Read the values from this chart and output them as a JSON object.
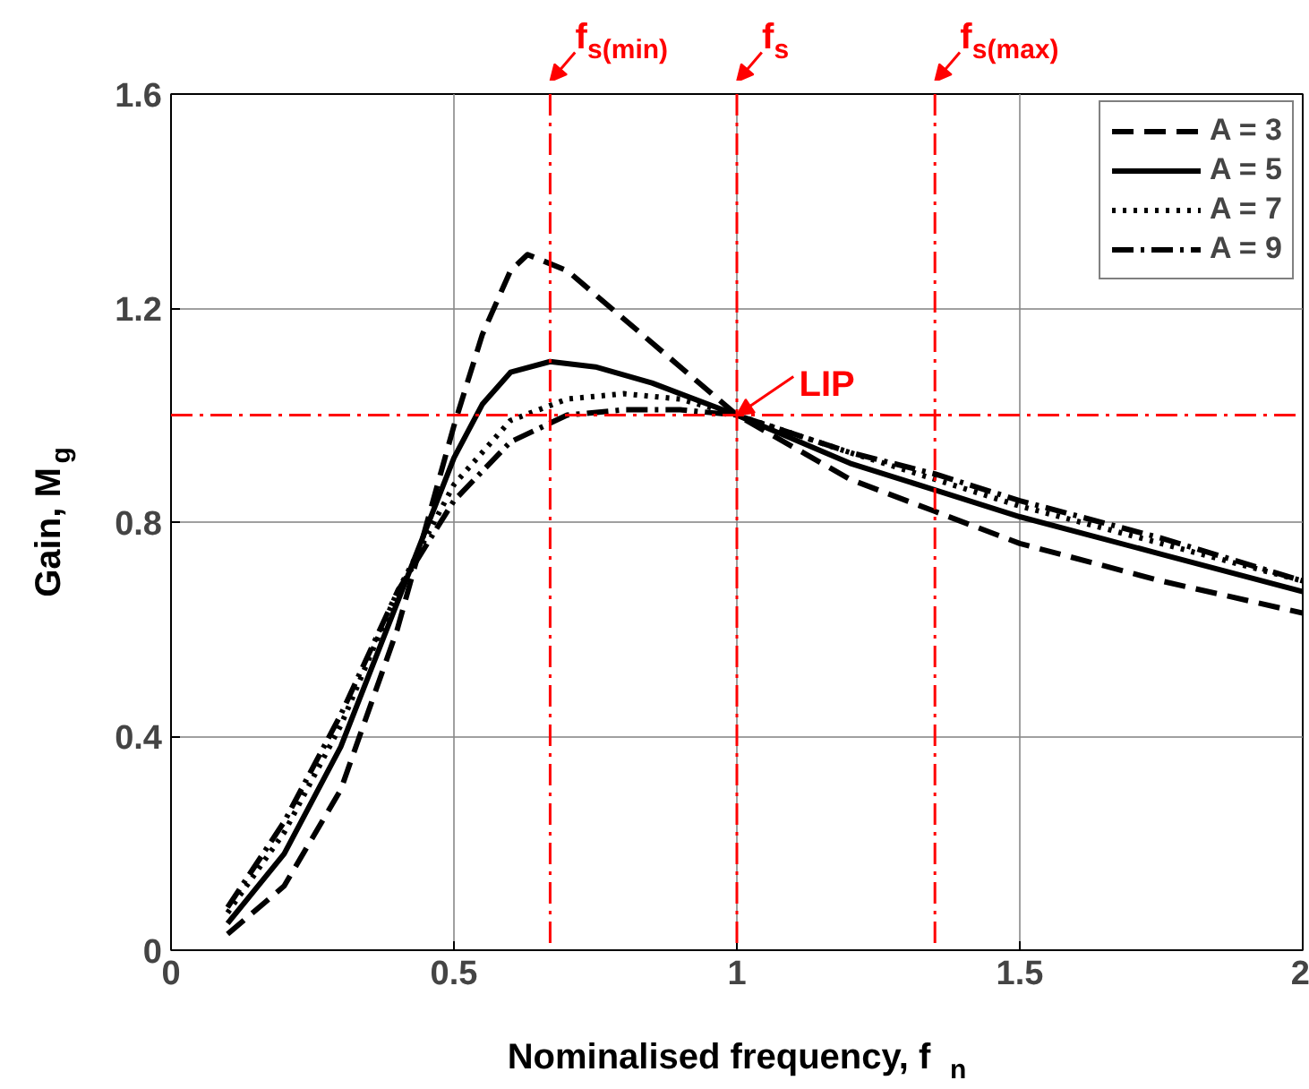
{
  "chart_data": {
    "type": "line",
    "xlabel": "Nominalised frequency, f$_{n}$",
    "ylabel": "Gain, M$_{g}$",
    "xlim": [
      0,
      2
    ],
    "ylim": [
      0,
      1.6
    ],
    "xticks": [
      0,
      0.5,
      1,
      1.5,
      2
    ],
    "yticks": [
      0,
      0.4,
      0.8,
      1.2,
      1.6
    ],
    "grid": true,
    "legend": "top right",
    "series": [
      {
        "name": "A = 3",
        "color": "#000000",
        "line_style": "dashed",
        "x": [
          0.1,
          0.2,
          0.3,
          0.4,
          0.5,
          0.55,
          0.6,
          0.63,
          0.7,
          0.8,
          0.9,
          1.0,
          1.2,
          1.35,
          1.5,
          1.75,
          2.0
        ],
        "values": [
          0.03,
          0.12,
          0.3,
          0.6,
          0.98,
          1.15,
          1.27,
          1.3,
          1.27,
          1.18,
          1.09,
          1.0,
          0.88,
          0.82,
          0.76,
          0.69,
          0.63
        ]
      },
      {
        "name": "A = 5",
        "color": "#000000",
        "line_style": "solid",
        "x": [
          0.1,
          0.2,
          0.3,
          0.4,
          0.5,
          0.55,
          0.6,
          0.67,
          0.75,
          0.85,
          1.0,
          1.2,
          1.35,
          1.5,
          1.75,
          2.0
        ],
        "values": [
          0.05,
          0.18,
          0.38,
          0.65,
          0.92,
          1.02,
          1.08,
          1.1,
          1.09,
          1.06,
          1.0,
          0.91,
          0.86,
          0.81,
          0.74,
          0.67
        ]
      },
      {
        "name": "A = 7",
        "color": "#000000",
        "line_style": "dotted",
        "x": [
          0.1,
          0.2,
          0.3,
          0.4,
          0.5,
          0.6,
          0.7,
          0.8,
          0.9,
          1.0,
          1.2,
          1.35,
          1.5,
          1.75,
          2.0
        ],
        "values": [
          0.07,
          0.22,
          0.42,
          0.67,
          0.87,
          0.99,
          1.03,
          1.04,
          1.03,
          1.0,
          0.93,
          0.88,
          0.83,
          0.76,
          0.69
        ]
      },
      {
        "name": "A = 9",
        "color": "#000000",
        "line_style": "dashdot",
        "x": [
          0.1,
          0.2,
          0.3,
          0.4,
          0.5,
          0.6,
          0.7,
          0.8,
          0.9,
          1.0,
          1.2,
          1.35,
          1.5,
          1.75,
          2.0
        ],
        "values": [
          0.08,
          0.24,
          0.44,
          0.67,
          0.84,
          0.95,
          1.0,
          1.01,
          1.01,
          1.0,
          0.93,
          0.89,
          0.84,
          0.77,
          0.69
        ]
      }
    ],
    "ref_lines": [
      {
        "axis": "x",
        "value": 0.67,
        "label": "f$_{s(min)}$",
        "color": "#ff0000",
        "line_style": "dashdot"
      },
      {
        "axis": "x",
        "value": 1.0,
        "label": "f$_{s}$",
        "color": "#ff0000",
        "line_style": "dashdot"
      },
      {
        "axis": "x",
        "value": 1.35,
        "label": "f$_{s(max)}$",
        "color": "#ff0000",
        "line_style": "dashdot"
      },
      {
        "axis": "y",
        "value": 1.0,
        "color": "#ff0000",
        "line_style": "dashdot"
      }
    ],
    "annotations": [
      {
        "text": "LIP",
        "x": 1.0,
        "y": 1.0
      }
    ]
  }
}
